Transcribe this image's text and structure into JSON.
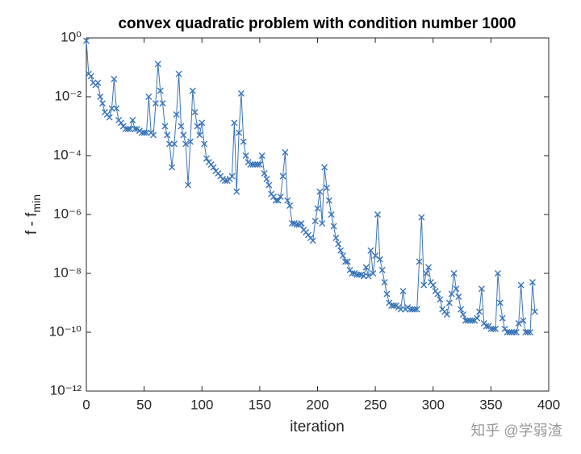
{
  "chart_data": {
    "type": "line",
    "title": "convex quadratic problem with condition number 1000",
    "xlabel": "iteration",
    "ylabel": {
      "text": "f - f",
      "subscript": "min"
    },
    "log_y": true,
    "grid": false,
    "color": "#3a74b8",
    "marker": "x",
    "xlim": [
      0,
      400
    ],
    "xticks": [
      0,
      50,
      100,
      150,
      200,
      250,
      300,
      350,
      400
    ],
    "ylim": [
      1e-12,
      1
    ],
    "yticks": [
      {
        "value": 1e-12,
        "label": "10⁻¹²"
      },
      {
        "value": 1e-10,
        "label": "10⁻¹⁰"
      },
      {
        "value": 1e-08,
        "label": "10⁻⁸"
      },
      {
        "value": 1e-06,
        "label": "10⁻⁶"
      },
      {
        "value": 0.0001,
        "label": "10⁻⁴"
      },
      {
        "value": 0.01,
        "label": "10⁻²"
      },
      {
        "value": 1,
        "label": "10⁰"
      }
    ],
    "x": [
      0,
      2,
      4,
      6,
      8,
      10,
      12,
      14,
      16,
      18,
      20,
      22,
      24,
      26,
      28,
      30,
      32,
      34,
      36,
      38,
      40,
      42,
      44,
      46,
      48,
      50,
      52,
      54,
      56,
      58,
      60,
      62,
      64,
      66,
      68,
      70,
      72,
      74,
      76,
      78,
      80,
      82,
      84,
      86,
      88,
      90,
      92,
      94,
      96,
      98,
      100,
      102,
      104,
      106,
      108,
      110,
      112,
      114,
      116,
      118,
      120,
      122,
      124,
      126,
      128,
      130,
      132,
      134,
      136,
      138,
      140,
      142,
      144,
      146,
      148,
      150,
      152,
      154,
      156,
      158,
      160,
      162,
      164,
      166,
      168,
      170,
      172,
      174,
      176,
      178,
      180,
      182,
      184,
      186,
      188,
      190,
      192,
      194,
      196,
      198,
      200,
      202,
      204,
      206,
      208,
      210,
      212,
      214,
      216,
      218,
      220,
      222,
      224,
      226,
      228,
      230,
      232,
      234,
      236,
      238,
      240,
      242,
      244,
      246,
      248,
      250,
      252,
      254,
      256,
      258,
      260,
      262,
      264,
      266,
      268,
      270,
      272,
      274,
      276,
      278,
      280,
      282,
      284,
      286,
      288,
      290,
      292,
      294,
      296,
      298,
      300,
      302,
      304,
      306,
      308,
      310,
      312,
      314,
      316,
      318,
      320,
      322,
      324,
      326,
      328,
      330,
      332,
      334,
      336,
      338,
      340,
      342,
      344,
      346,
      348,
      350,
      352,
      354,
      356,
      358,
      360,
      362,
      364,
      366,
      368,
      370,
      372,
      374,
      376,
      378,
      380,
      382,
      384,
      386,
      388
    ],
    "values": [
      0.8,
      0.06,
      0.05,
      0.03,
      0.025,
      0.03,
      0.01,
      0.006,
      0.003,
      0.0025,
      0.002,
      0.004,
      0.04,
      0.004,
      0.0016,
      0.0013,
      0.001,
      0.0008,
      0.0008,
      0.0008,
      0.0016,
      0.0008,
      0.0008,
      0.0007,
      0.0006,
      0.0006,
      0.0006,
      0.01,
      0.0006,
      0.0005,
      0.006,
      0.13,
      0.016,
      0.006,
      0.001,
      0.0005,
      0.00025,
      4e-05,
      0.00025,
      0.0025,
      0.06,
      0.001,
      0.0005,
      0.00025,
      1e-05,
      0.0003,
      0.016,
      0.003,
      0.001,
      0.0005,
      0.0013,
      0.00025,
      8e-05,
      6e-05,
      5e-05,
      4e-05,
      3e-05,
      2.5e-05,
      2e-05,
      1.6e-05,
      1.4e-05,
      1.4e-05,
      1.6e-05,
      2e-05,
      0.0013,
      6e-06,
      0.0006,
      0.013,
      0.0003,
      0.0001,
      6e-05,
      5e-05,
      5e-05,
      5e-05,
      5e-05,
      5e-05,
      0.0001,
      2.5e-05,
      1.6e-05,
      1e-05,
      5e-06,
      4e-06,
      3e-06,
      3e-06,
      4e-06,
      2e-05,
      0.00013,
      3e-06,
      2e-06,
      5e-07,
      5e-07,
      4.5e-07,
      4.5e-07,
      5e-07,
      3e-07,
      2.5e-07,
      2e-07,
      1.6e-07,
      1.3e-07,
      6e-07,
      1.6e-06,
      6e-06,
      5e-07,
      4e-05,
      8e-06,
      3e-06,
      1e-06,
      4e-07,
      1.6e-07,
      1e-07,
      6e-08,
      4e-08,
      2.5e-08,
      2.5e-08,
      1.3e-08,
      1e-08,
      1e-08,
      9e-09,
      9e-09,
      9e-09,
      8e-09,
      1.6e-08,
      8e-09,
      6e-08,
      1e-08,
      4e-08,
      1e-06,
      3e-08,
      1.3e-08,
      5e-09,
      2e-09,
      1e-09,
      8e-10,
      8e-10,
      8e-10,
      7e-10,
      6e-10,
      2.5e-09,
      6e-10,
      7e-10,
      6e-10,
      6e-10,
      6e-10,
      6e-10,
      2.5e-08,
      8e-07,
      4e-09,
      1e-08,
      1.6e-08,
      5e-09,
      4e-09,
      2.5e-09,
      2e-09,
      1.3e-09,
      6e-10,
      5e-10,
      4e-10,
      1e-09,
      2e-09,
      1e-08,
      3e-09,
      1.6e-09,
      6e-10,
      4e-10,
      2.5e-10,
      2.5e-10,
      2.5e-10,
      2.5e-10,
      2.5e-10,
      3e-10,
      5e-10,
      3e-09,
      2e-10,
      1.6e-10,
      1.6e-10,
      1.3e-10,
      1.3e-10,
      1.3e-10,
      1e-08,
      1e-09,
      3e-10,
      1.3e-10,
      1e-10,
      1e-10,
      1e-10,
      1e-10,
      1e-10,
      2e-10,
      4e-09,
      2.5e-10,
      1e-10,
      1e-10,
      1e-10,
      5e-09,
      5e-10
    ]
  },
  "watermark": "知乎 @学弱渣"
}
